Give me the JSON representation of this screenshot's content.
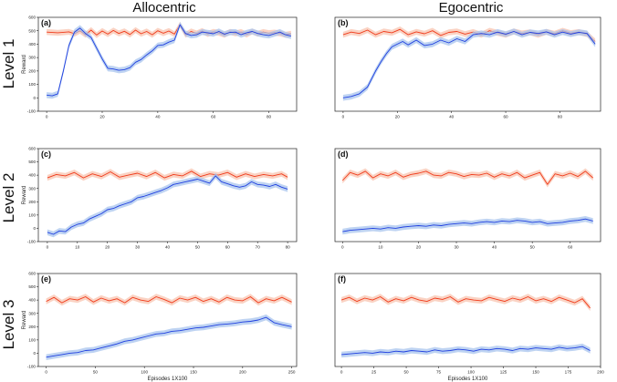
{
  "column_titles": [
    "Allocentric",
    "Egocentric"
  ],
  "row_titles": [
    "Level 1",
    "Level 2",
    "Level 3"
  ],
  "colors": {
    "blue_series": "#1f3fe0",
    "red_series": "#f03a1a",
    "blue_band": "#a8c4ee",
    "red_band": "#f8c4b0"
  },
  "chart_data": [
    {
      "type": "line",
      "panel": "(a)",
      "ylabel": "Reward",
      "xlabel": "",
      "xlim": [
        -3,
        90
      ],
      "ylim": [
        -100,
        600
      ],
      "xticks": [
        0,
        20,
        40,
        60,
        80
      ],
      "yticks": [
        -100,
        0,
        100,
        200,
        300,
        400,
        500,
        600
      ],
      "series": [
        {
          "color": "red",
          "x": [
            0,
            4,
            8,
            10,
            12,
            14,
            16,
            18,
            20,
            22,
            24,
            26,
            28,
            30,
            32,
            34,
            36,
            38,
            40,
            42,
            44,
            46,
            48,
            50,
            52,
            54,
            56,
            58,
            60,
            62,
            64,
            66,
            68,
            70,
            72,
            74,
            76,
            78,
            80,
            82,
            84,
            86,
            88
          ],
          "y": [
            490,
            485,
            492,
            478,
            500,
            470,
            505,
            468,
            498,
            475,
            502,
            480,
            496,
            472,
            505,
            478,
            495,
            470,
            500,
            482,
            498,
            475,
            545,
            470,
            495,
            480,
            498,
            476,
            492,
            484,
            470,
            492,
            480,
            490,
            472,
            495,
            478,
            490,
            482,
            486,
            480,
            470,
            478
          ]
        },
        {
          "color": "blue",
          "x": [
            0,
            2,
            4,
            6,
            8,
            10,
            12,
            14,
            16,
            18,
            20,
            22,
            24,
            26,
            28,
            30,
            32,
            34,
            36,
            38,
            40,
            42,
            44,
            46,
            48,
            50,
            52,
            54,
            56,
            58,
            60,
            62,
            64,
            66,
            68,
            70,
            72,
            74,
            76,
            78,
            80,
            82,
            84,
            86,
            88
          ],
          "y": [
            20,
            15,
            30,
            200,
            390,
            490,
            520,
            480,
            450,
            370,
            290,
            220,
            215,
            205,
            210,
            225,
            265,
            285,
            320,
            350,
            390,
            395,
            415,
            430,
            545,
            480,
            465,
            470,
            490,
            485,
            478,
            495,
            475,
            488,
            490,
            470,
            485,
            495,
            480,
            470,
            465,
            478,
            490,
            470,
            460
          ]
        }
      ]
    },
    {
      "type": "line",
      "panel": "(b)",
      "ylabel": "",
      "xlabel": "",
      "xlim": [
        -3,
        95
      ],
      "ylim": [
        -100,
        600
      ],
      "xticks": [
        0,
        20,
        40,
        60,
        80
      ],
      "yticks": [],
      "series": [
        {
          "color": "red",
          "x": [
            0,
            3,
            6,
            9,
            12,
            15,
            18,
            21,
            24,
            27,
            30,
            33,
            36,
            39,
            42,
            45,
            48,
            51,
            54,
            57,
            60,
            63,
            66,
            69,
            72,
            75,
            78,
            81,
            84,
            87,
            90,
            93
          ],
          "y": [
            470,
            490,
            480,
            505,
            470,
            495,
            485,
            510,
            470,
            492,
            478,
            500,
            465,
            488,
            495,
            475,
            490,
            470,
            500,
            484,
            470,
            495,
            480,
            488,
            470,
            492,
            478,
            500,
            482,
            490,
            475,
            420
          ]
        },
        {
          "color": "blue",
          "x": [
            0,
            3,
            6,
            9,
            12,
            14,
            16,
            18,
            20,
            22,
            24,
            27,
            30,
            33,
            36,
            39,
            42,
            45,
            48,
            51,
            54,
            57,
            60,
            63,
            66,
            69,
            72,
            75,
            78,
            81,
            84,
            87,
            90,
            93
          ],
          "y": [
            0,
            10,
            30,
            80,
            200,
            270,
            330,
            380,
            400,
            420,
            395,
            430,
            390,
            400,
            430,
            410,
            440,
            420,
            470,
            480,
            470,
            490,
            475,
            495,
            470,
            488,
            480,
            492,
            470,
            490,
            475,
            488,
            480,
            400
          ]
        }
      ]
    },
    {
      "type": "line",
      "panel": "(c)",
      "ylabel": "Reward",
      "xlabel": "",
      "xlim": [
        -3,
        83
      ],
      "ylim": [
        -100,
        600
      ],
      "xticks": [
        0,
        10,
        20,
        30,
        40,
        50,
        60,
        70,
        80
      ],
      "yticks": [
        -100,
        0,
        100,
        200,
        300,
        400,
        500,
        600
      ],
      "series": [
        {
          "color": "red",
          "x": [
            0,
            3,
            6,
            9,
            12,
            15,
            18,
            21,
            24,
            27,
            30,
            33,
            36,
            39,
            42,
            45,
            48,
            51,
            54,
            57,
            60,
            63,
            66,
            69,
            72,
            75,
            78,
            80
          ],
          "y": [
            380,
            405,
            395,
            420,
            380,
            410,
            390,
            425,
            385,
            400,
            415,
            390,
            420,
            380,
            405,
            395,
            430,
            390,
            410,
            400,
            420,
            385,
            410,
            390,
            405,
            395,
            410,
            385
          ]
        },
        {
          "color": "blue",
          "x": [
            0,
            2,
            4,
            6,
            8,
            10,
            12,
            14,
            16,
            18,
            20,
            22,
            24,
            26,
            28,
            30,
            32,
            34,
            36,
            38,
            40,
            42,
            44,
            46,
            48,
            50,
            52,
            54,
            56,
            58,
            60,
            62,
            64,
            66,
            68,
            70,
            72,
            74,
            76,
            78,
            80
          ],
          "y": [
            -30,
            -45,
            -20,
            -25,
            10,
            30,
            40,
            70,
            90,
            110,
            140,
            150,
            170,
            185,
            200,
            230,
            240,
            255,
            270,
            285,
            305,
            330,
            340,
            350,
            360,
            370,
            355,
            340,
            395,
            350,
            335,
            320,
            310,
            320,
            350,
            330,
            325,
            315,
            330,
            310,
            295
          ]
        }
      ]
    },
    {
      "type": "line",
      "panel": "(d)",
      "ylabel": "",
      "xlabel": "",
      "xlim": [
        -2,
        68
      ],
      "ylim": [
        -100,
        600
      ],
      "xticks": [
        0,
        10,
        20,
        30,
        40,
        50,
        60
      ],
      "yticks": [],
      "series": [
        {
          "color": "red",
          "x": [
            0,
            2,
            4,
            6,
            8,
            10,
            12,
            14,
            16,
            18,
            20,
            22,
            24,
            26,
            28,
            30,
            32,
            34,
            36,
            38,
            40,
            42,
            44,
            46,
            48,
            50,
            52,
            54,
            56,
            58,
            60,
            62,
            64,
            66
          ],
          "y": [
            360,
            420,
            400,
            430,
            380,
            410,
            395,
            420,
            385,
            405,
            415,
            430,
            400,
            395,
            420,
            410,
            390,
            405,
            400,
            415,
            385,
            410,
            395,
            420,
            380,
            400,
            420,
            330,
            410,
            395,
            415,
            390,
            430,
            380
          ]
        },
        {
          "color": "blue",
          "x": [
            0,
            2,
            4,
            6,
            8,
            10,
            12,
            14,
            16,
            18,
            20,
            22,
            24,
            26,
            28,
            30,
            32,
            34,
            36,
            38,
            40,
            42,
            44,
            46,
            48,
            50,
            52,
            54,
            56,
            58,
            60,
            62,
            64,
            66
          ],
          "y": [
            -25,
            -15,
            -10,
            -5,
            0,
            -5,
            5,
            0,
            10,
            15,
            20,
            15,
            25,
            20,
            30,
            35,
            40,
            35,
            45,
            50,
            45,
            55,
            50,
            60,
            55,
            45,
            50,
            35,
            40,
            45,
            55,
            60,
            70,
            55
          ]
        }
      ]
    },
    {
      "type": "line",
      "panel": "(e)",
      "ylabel": "Reward",
      "xlabel": "Episodes 1X100",
      "xlim": [
        -8,
        255
      ],
      "ylim": [
        -100,
        600
      ],
      "xticks": [
        0,
        50,
        100,
        150,
        200,
        250
      ],
      "yticks": [
        -100,
        0,
        100,
        200,
        300,
        400,
        500,
        600
      ],
      "series": [
        {
          "color": "red",
          "x": [
            0,
            8,
            16,
            24,
            32,
            40,
            48,
            56,
            64,
            72,
            80,
            88,
            96,
            104,
            112,
            120,
            128,
            136,
            144,
            152,
            160,
            168,
            176,
            184,
            192,
            200,
            208,
            216,
            224,
            232,
            240,
            250
          ],
          "y": [
            390,
            420,
            380,
            410,
            400,
            425,
            385,
            415,
            395,
            410,
            380,
            420,
            400,
            390,
            425,
            405,
            380,
            415,
            400,
            420,
            390,
            410,
            385,
            420,
            400,
            395,
            425,
            380,
            410,
            395,
            420,
            385
          ]
        },
        {
          "color": "blue",
          "x": [
            0,
            8,
            16,
            24,
            32,
            40,
            48,
            56,
            64,
            72,
            80,
            88,
            96,
            104,
            112,
            120,
            128,
            136,
            144,
            152,
            160,
            168,
            176,
            184,
            192,
            200,
            208,
            216,
            224,
            232,
            240,
            250
          ],
          "y": [
            -30,
            -20,
            -10,
            0,
            5,
            20,
            25,
            40,
            55,
            70,
            90,
            100,
            115,
            130,
            145,
            150,
            165,
            170,
            180,
            190,
            195,
            205,
            215,
            220,
            225,
            235,
            240,
            250,
            270,
            230,
            215,
            200
          ]
        }
      ]
    },
    {
      "type": "line",
      "panel": "(f)",
      "ylabel": "",
      "xlabel": "Episodes 1X100",
      "xlim": [
        -5,
        200
      ],
      "ylim": [
        -100,
        600
      ],
      "xticks": [
        0,
        25,
        50,
        75,
        100,
        125,
        150,
        175,
        200
      ],
      "yticks": [],
      "series": [
        {
          "color": "red",
          "x": [
            0,
            6,
            12,
            18,
            24,
            30,
            36,
            42,
            48,
            54,
            60,
            66,
            72,
            78,
            84,
            90,
            96,
            102,
            108,
            114,
            120,
            126,
            132,
            138,
            144,
            150,
            156,
            162,
            168,
            174,
            180,
            186,
            192
          ],
          "y": [
            400,
            420,
            390,
            415,
            400,
            425,
            385,
            410,
            395,
            420,
            400,
            390,
            415,
            405,
            425,
            385,
            410,
            400,
            395,
            420,
            405,
            390,
            415,
            400,
            425,
            395,
            410,
            390,
            420,
            400,
            380,
            410,
            340
          ]
        },
        {
          "color": "blue",
          "x": [
            0,
            6,
            12,
            18,
            24,
            30,
            36,
            42,
            48,
            54,
            60,
            66,
            72,
            78,
            84,
            90,
            96,
            102,
            108,
            114,
            120,
            126,
            132,
            138,
            144,
            150,
            156,
            162,
            168,
            174,
            180,
            186,
            192
          ],
          "y": [
            -10,
            -5,
            0,
            5,
            0,
            10,
            5,
            15,
            10,
            20,
            15,
            10,
            25,
            15,
            20,
            30,
            25,
            15,
            30,
            25,
            35,
            30,
            20,
            35,
            30,
            40,
            35,
            30,
            45,
            35,
            40,
            50,
            20
          ]
        }
      ]
    }
  ]
}
